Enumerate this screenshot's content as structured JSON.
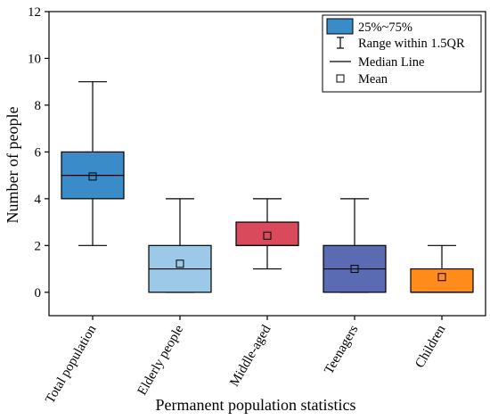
{
  "chart_data": {
    "type": "box",
    "xlabel": "Permanent population statistics",
    "ylabel": "Number of people",
    "ylim": [
      -1,
      12
    ],
    "yticks": [
      0,
      2,
      4,
      6,
      8,
      10,
      12
    ],
    "grid": false,
    "legend_position": "top-right",
    "legend": {
      "box": "25%~75%",
      "whisker": "Range within 1.5QR",
      "median": "Median Line",
      "mean": "Mean"
    },
    "categories": [
      "Total population",
      "Elderly people",
      "Middle-aged",
      "Teenagers",
      "Children"
    ],
    "boxes": [
      {
        "name": "Total population",
        "whisker_low": 2,
        "q1": 4,
        "median": 5,
        "q3": 6,
        "whisker_high": 9,
        "mean": 4.95,
        "color": "#3a8cc8"
      },
      {
        "name": "Elderly people",
        "whisker_low": 0,
        "q1": 0,
        "median": 1,
        "q3": 2,
        "whisker_high": 4,
        "mean": 1.22,
        "color": "#9dc9e8"
      },
      {
        "name": "Middle-aged",
        "whisker_low": 1,
        "q1": 2,
        "median": 2,
        "q3": 3,
        "whisker_high": 4,
        "mean": 2.42,
        "color": "#d84a5c"
      },
      {
        "name": "Teenagers",
        "whisker_low": 0,
        "q1": 0,
        "median": 1,
        "q3": 2,
        "whisker_high": 4,
        "mean": 1.0,
        "color": "#5b6bb3"
      },
      {
        "name": "Children",
        "whisker_low": 0,
        "q1": 0,
        "median": 0,
        "q3": 1,
        "whisker_high": 2,
        "mean": 0.65,
        "color": "#ff8c1a"
      }
    ],
    "legend_swatch_color": "#3a8cc8"
  }
}
